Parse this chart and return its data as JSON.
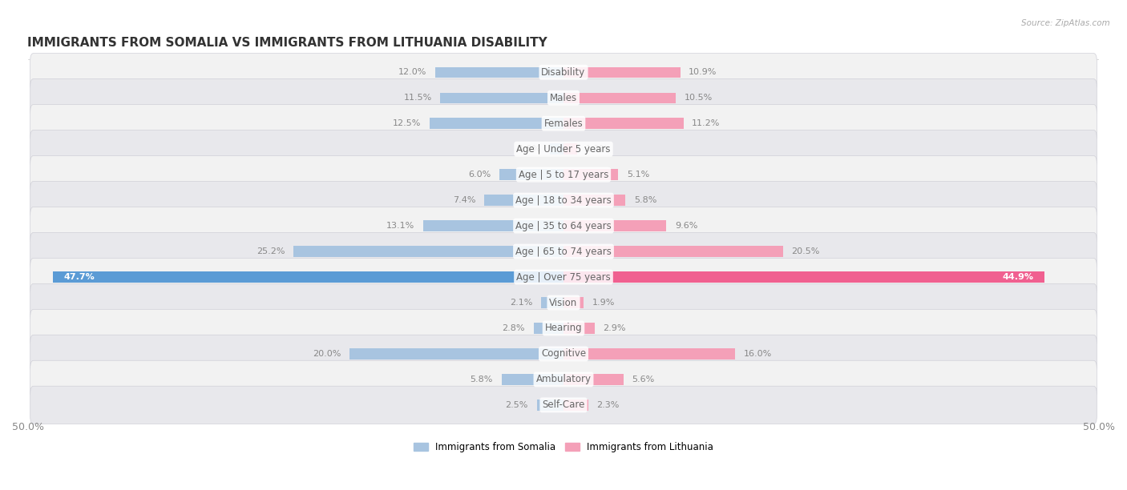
{
  "title": "IMMIGRANTS FROM SOMALIA VS IMMIGRANTS FROM LITHUANIA DISABILITY",
  "source": "Source: ZipAtlas.com",
  "categories": [
    "Disability",
    "Males",
    "Females",
    "Age | Under 5 years",
    "Age | 5 to 17 years",
    "Age | 18 to 34 years",
    "Age | 35 to 64 years",
    "Age | 65 to 74 years",
    "Age | Over 75 years",
    "Vision",
    "Hearing",
    "Cognitive",
    "Ambulatory",
    "Self-Care"
  ],
  "somalia_values": [
    12.0,
    11.5,
    12.5,
    1.3,
    6.0,
    7.4,
    13.1,
    25.2,
    47.7,
    2.1,
    2.8,
    20.0,
    5.8,
    2.5
  ],
  "lithuania_values": [
    10.9,
    10.5,
    11.2,
    1.3,
    5.1,
    5.8,
    9.6,
    20.5,
    44.9,
    1.9,
    2.9,
    16.0,
    5.6,
    2.3
  ],
  "somalia_color": "#a8c4e0",
  "somalia_color_full": "#5b9bd5",
  "lithuania_color": "#f4a0b8",
  "lithuania_color_full": "#f06090",
  "somalia_label": "Immigrants from Somalia",
  "lithuania_label": "Immigrants from Lithuania",
  "xlim": 50.0,
  "background_color": "#ffffff",
  "row_bg_even": "#f5f5f5",
  "row_bg_odd": "#ebebeb",
  "title_fontsize": 11,
  "label_fontsize": 8.5,
  "value_fontsize": 8,
  "axis_label_fontsize": 9
}
